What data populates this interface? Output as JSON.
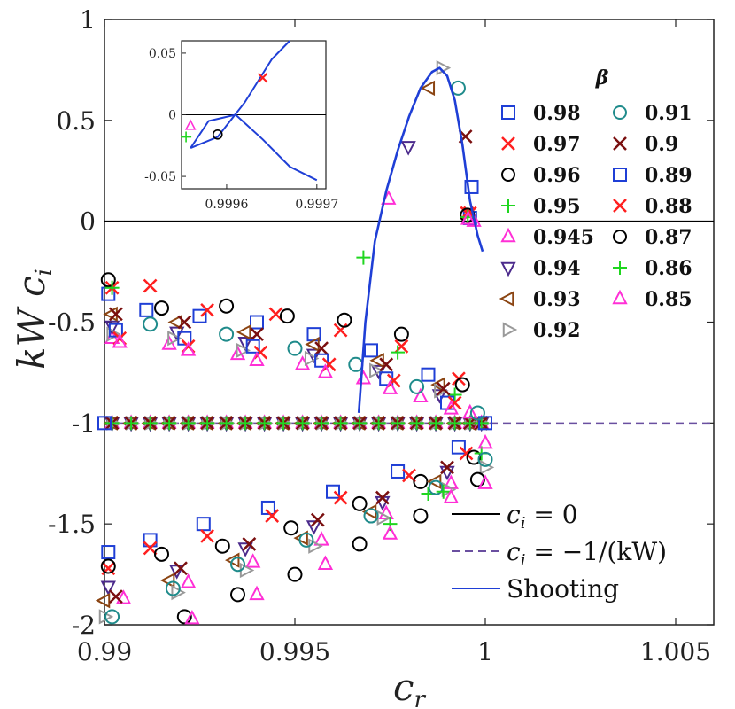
{
  "chart_data": {
    "type": "scatter",
    "xlabel": "c",
    "xlabel_sub": "r",
    "ylabel": "kW c",
    "ylabel_sub": "i",
    "xlim": [
      0.99,
      1.006
    ],
    "ylim": [
      -2,
      1
    ],
    "xticks": [
      0.99,
      0.995,
      1,
      1.005
    ],
    "xtick_labels": [
      "0.99",
      "0.995",
      "1",
      "1.005"
    ],
    "yticks": [
      -2,
      -1.5,
      -1,
      -0.5,
      0,
      0.5,
      1
    ],
    "ytick_labels": [
      "-2",
      "-1.5",
      "-1",
      "-0.5",
      "0",
      "0.5",
      "1"
    ],
    "legend_title": "β",
    "series": [
      {
        "name": "0.98",
        "marker": "square",
        "color": "#1f3fd6",
        "points": [
          [
            0.9901,
            -0.36
          ],
          [
            0.9911,
            -0.44
          ],
          [
            0.9925,
            -0.47
          ],
          [
            0.994,
            -0.5
          ],
          [
            0.9955,
            -0.56
          ],
          [
            0.997,
            -0.64
          ],
          [
            0.9985,
            -0.76
          ],
          [
            0.9996,
            0.016
          ],
          [
            0.9901,
            -1.64
          ],
          [
            0.9912,
            -1.58
          ],
          [
            0.9926,
            -1.5
          ],
          [
            0.9943,
            -1.42
          ],
          [
            0.996,
            -1.34
          ],
          [
            0.9977,
            -1.24
          ],
          [
            0.9993,
            -1.12
          ],
          [
            0.99,
            -1.0
          ],
          [
            1.0,
            -1.0
          ]
        ]
      },
      {
        "name": "0.97",
        "marker": "x",
        "color": "#ff1f1f",
        "points": [
          [
            0.9902,
            -0.33
          ],
          [
            0.9912,
            -0.32
          ],
          [
            0.9927,
            -0.44
          ],
          [
            0.9945,
            -0.46
          ],
          [
            0.9962,
            -0.54
          ],
          [
            0.9978,
            -0.62
          ],
          [
            0.9993,
            -0.78
          ],
          [
            0.9901,
            -1.72
          ],
          [
            0.9912,
            -1.62
          ],
          [
            0.9927,
            -1.56
          ],
          [
            0.9944,
            -1.46
          ],
          [
            0.9962,
            -1.37
          ],
          [
            0.998,
            -1.26
          ],
          [
            0.9995,
            -1.15
          ],
          [
            0.9996,
            0.04
          ]
        ]
      },
      {
        "name": "0.96",
        "marker": "circle",
        "color": "#000000",
        "points": [
          [
            0.9901,
            -0.29
          ],
          [
            0.9915,
            -0.43
          ],
          [
            0.9932,
            -0.42
          ],
          [
            0.9948,
            -0.47
          ],
          [
            0.9963,
            -0.49
          ],
          [
            0.9978,
            -0.56
          ],
          [
            0.9994,
            -0.81
          ],
          [
            0.9901,
            -1.71
          ],
          [
            0.9915,
            -1.65
          ],
          [
            0.9931,
            -1.61
          ],
          [
            0.9949,
            -1.52
          ],
          [
            0.9967,
            -1.4
          ],
          [
            0.9983,
            -1.29
          ],
          [
            0.9997,
            -1.17
          ]
        ]
      },
      {
        "name": "0.95",
        "marker": "plus",
        "color": "#1fd61f",
        "points": [
          [
            0.9968,
            -0.18
          ],
          [
            0.9977,
            -0.65
          ],
          [
            0.9902,
            -0.33
          ],
          [
            0.9992,
            -0.86
          ],
          [
            0.9985,
            -1.35
          ],
          [
            0.9999,
            -1.15
          ]
        ]
      },
      {
        "name": "0.945",
        "marker": "triangle-up",
        "color": "#ff2fd6",
        "points": [
          [
            0.99746,
            0.11
          ],
          [
            0.9997,
            0.0
          ],
          [
            0.9902,
            -0.58
          ],
          [
            0.9917,
            -0.61
          ],
          [
            0.9935,
            -0.66
          ],
          [
            0.9952,
            -0.71
          ],
          [
            0.9968,
            -0.78
          ],
          [
            0.9983,
            -0.87
          ],
          [
            0.9996,
            -0.95
          ],
          [
            0.9905,
            -1.87
          ],
          [
            0.9922,
            -1.79
          ],
          [
            0.9939,
            -1.69
          ],
          [
            0.9957,
            -1.58
          ],
          [
            0.9974,
            -1.45
          ],
          [
            0.9991,
            -1.3
          ],
          [
            1.0,
            -1.1
          ]
        ]
      },
      {
        "name": "0.94",
        "marker": "triangle-down",
        "color": "#4b2a8c",
        "points": [
          [
            0.99798,
            0.37
          ],
          [
            0.9902,
            -0.52
          ],
          [
            0.9919,
            -0.55
          ],
          [
            0.9937,
            -0.6
          ],
          [
            0.9955,
            -0.66
          ],
          [
            0.9972,
            -0.74
          ],
          [
            0.9988,
            -0.86
          ],
          [
            0.9901,
            -1.81
          ],
          [
            0.9919,
            -1.73
          ],
          [
            0.9937,
            -1.62
          ],
          [
            0.9955,
            -1.51
          ],
          [
            0.9973,
            -1.39
          ],
          [
            0.999,
            -1.24
          ]
        ]
      },
      {
        "name": "0.93",
        "marker": "triangle-left",
        "color": "#8b4513",
        "points": [
          [
            0.99853,
            0.66
          ],
          [
            0.9902,
            -0.46
          ],
          [
            0.9919,
            -0.5
          ],
          [
            0.9937,
            -0.55
          ],
          [
            0.9955,
            -0.61
          ],
          [
            0.9972,
            -0.69
          ],
          [
            0.9988,
            -0.81
          ],
          [
            0.99,
            -1.88
          ],
          [
            0.9917,
            -1.78
          ],
          [
            0.9934,
            -1.68
          ],
          [
            0.9952,
            -1.57
          ],
          [
            0.997,
            -1.44
          ],
          [
            0.9987,
            -1.29
          ]
        ]
      },
      {
        "name": "0.92",
        "marker": "triangle-right",
        "color": "#999999",
        "points": [
          [
            0.99886,
            0.76
          ],
          [
            0.9902,
            -0.56
          ],
          [
            0.9918,
            -0.58
          ],
          [
            0.9936,
            -0.64
          ],
          [
            0.9954,
            -0.68
          ],
          [
            0.9971,
            -0.74
          ],
          [
            0.9988,
            -0.84
          ],
          [
            0.99,
            -1.96
          ],
          [
            0.9919,
            -1.84
          ],
          [
            0.9937,
            -1.73
          ],
          [
            0.9955,
            -1.61
          ],
          [
            0.9973,
            -1.47
          ],
          [
            0.999,
            -1.33
          ],
          [
            1.0,
            -1.22
          ]
        ]
      },
      {
        "name": "0.91",
        "marker": "circle",
        "color": "#1f8b8b",
        "points": [
          [
            0.99929,
            0.66
          ],
          [
            0.9912,
            -0.51
          ],
          [
            0.9932,
            -0.56
          ],
          [
            0.995,
            -0.63
          ],
          [
            0.9966,
            -0.71
          ],
          [
            0.9982,
            -0.82
          ],
          [
            0.9998,
            -0.95
          ],
          [
            0.9902,
            -1.96
          ],
          [
            0.9918,
            -1.82
          ],
          [
            0.9935,
            -1.7
          ],
          [
            0.9953,
            -1.58
          ],
          [
            0.997,
            -1.46
          ],
          [
            0.9987,
            -1.32
          ],
          [
            1.0,
            -1.18
          ]
        ]
      },
      {
        "name": "0.9",
        "marker": "x",
        "color": "#7a0f0f",
        "points": [
          [
            0.99948,
            0.42
          ],
          [
            0.9903,
            -0.46
          ],
          [
            0.9921,
            -0.5
          ],
          [
            0.994,
            -0.56
          ],
          [
            0.9957,
            -0.63
          ],
          [
            0.9974,
            -0.71
          ],
          [
            0.9989,
            -0.83
          ],
          [
            0.9903,
            -1.86
          ],
          [
            0.992,
            -1.72
          ],
          [
            0.9938,
            -1.6
          ],
          [
            0.9956,
            -1.48
          ],
          [
            0.9973,
            -1.37
          ],
          [
            0.999,
            -1.22
          ]
        ]
      },
      {
        "name": "0.89",
        "marker": "square",
        "color": "#1f3fd6",
        "points": [
          [
            0.99964,
            0.17
          ],
          [
            0.9903,
            -0.54
          ],
          [
            0.9921,
            -0.58
          ],
          [
            0.9939,
            -0.62
          ],
          [
            0.9957,
            -0.69
          ],
          [
            0.9974,
            -0.78
          ],
          [
            0.999,
            -0.9
          ]
        ]
      },
      {
        "name": "0.88",
        "marker": "x",
        "color": "#ff1f1f",
        "points": [
          [
            0.99952,
            0.04
          ],
          [
            0.9904,
            -0.58
          ],
          [
            0.9922,
            -0.62
          ],
          [
            0.9941,
            -0.65
          ],
          [
            0.9959,
            -0.71
          ],
          [
            0.9976,
            -0.79
          ],
          [
            0.9992,
            -0.9
          ]
        ]
      },
      {
        "name": "0.87",
        "marker": "circle",
        "color": "#000000",
        "points": [
          [
            0.99953,
            0.03
          ],
          [
            0.9921,
            -1.96
          ],
          [
            0.9935,
            -1.85
          ],
          [
            0.995,
            -1.75
          ],
          [
            0.9967,
            -1.6
          ],
          [
            0.9983,
            -1.46
          ],
          [
            0.9998,
            -1.28
          ]
        ]
      },
      {
        "name": "0.86",
        "marker": "plus",
        "color": "#1fd61f",
        "points": [
          [
            0.99954,
            0.02
          ],
          [
            0.9975,
            -1.5
          ],
          [
            0.9989,
            -1.34
          ]
        ]
      },
      {
        "name": "0.85",
        "marker": "triangle-up",
        "color": "#ff2fd6",
        "points": [
          [
            0.99955,
            0.01
          ],
          [
            0.9904,
            -0.6
          ],
          [
            0.9922,
            -0.64
          ],
          [
            0.994,
            -0.69
          ],
          [
            0.9958,
            -0.75
          ],
          [
            0.9975,
            -0.83
          ],
          [
            0.9991,
            -0.93
          ],
          [
            0.9923,
            -1.97
          ],
          [
            0.994,
            -1.85
          ],
          [
            0.9958,
            -1.7
          ],
          [
            0.9975,
            -1.55
          ],
          [
            0.9991,
            -1.37
          ],
          [
            1.0,
            -1.3
          ]
        ]
      }
    ],
    "shooting": {
      "name": "Shooting",
      "color": "#1f3fd6",
      "x": [
        0.99668,
        0.99685,
        0.9971,
        0.9974,
        0.9977,
        0.998,
        0.9983,
        0.9986,
        0.9988,
        0.999,
        0.9992,
        0.9994,
        0.9996,
        0.9998,
        0.99993
      ],
      "y": [
        -0.95,
        -0.5,
        -0.1,
        0.15,
        0.35,
        0.52,
        0.66,
        0.74,
        0.76,
        0.72,
        0.6,
        0.38,
        0.1,
        -0.07,
        -0.15
      ]
    },
    "reference_lines": [
      {
        "name": "c_i = 0",
        "label": "c",
        "label_sub": "i",
        "label_rest": " = 0",
        "y": 0,
        "style": "solid",
        "color": "#000000"
      },
      {
        "name": "c_i = -1/(kW)",
        "label": "c",
        "label_sub": "i",
        "label_rest": " = −1/(kW)",
        "y": -1,
        "style": "dashed",
        "color": "#6a4fa0"
      }
    ],
    "inset": {
      "xlim": [
        0.99955,
        0.99971
      ],
      "ylim": [
        -0.06,
        0.06
      ],
      "xticks": [
        0.9996,
        0.9997
      ],
      "xtick_labels": [
        "0.9996",
        "0.9997"
      ],
      "yticks": [
        -0.05,
        0,
        0.05
      ],
      "ytick_labels": [
        "-0.05",
        "0",
        "0.05"
      ],
      "curve_x": [
        0.99956,
        0.99958,
        0.99961,
        0.99964,
        0.99967,
        0.9997
      ],
      "curve_y": [
        -0.027,
        -0.005,
        0.0,
        -0.02,
        -0.042,
        -0.053
      ],
      "branch_x": [
        0.99956,
        0.99959,
        0.99962,
        0.99965,
        0.99967
      ],
      "branch_y": [
        -0.027,
        -0.018,
        0.01,
        0.045,
        0.06
      ],
      "points": [
        {
          "x": 0.99964,
          "y": 0.03,
          "marker": "x",
          "color": "#ff1f1f"
        },
        {
          "x": 0.99959,
          "y": -0.016,
          "marker": "circle",
          "color": "#000000"
        },
        {
          "x": 0.999555,
          "y": -0.018,
          "marker": "plus",
          "color": "#1fd61f"
        },
        {
          "x": 0.99956,
          "y": -0.009,
          "marker": "triangle-up",
          "color": "#ff2fd6"
        }
      ]
    }
  }
}
